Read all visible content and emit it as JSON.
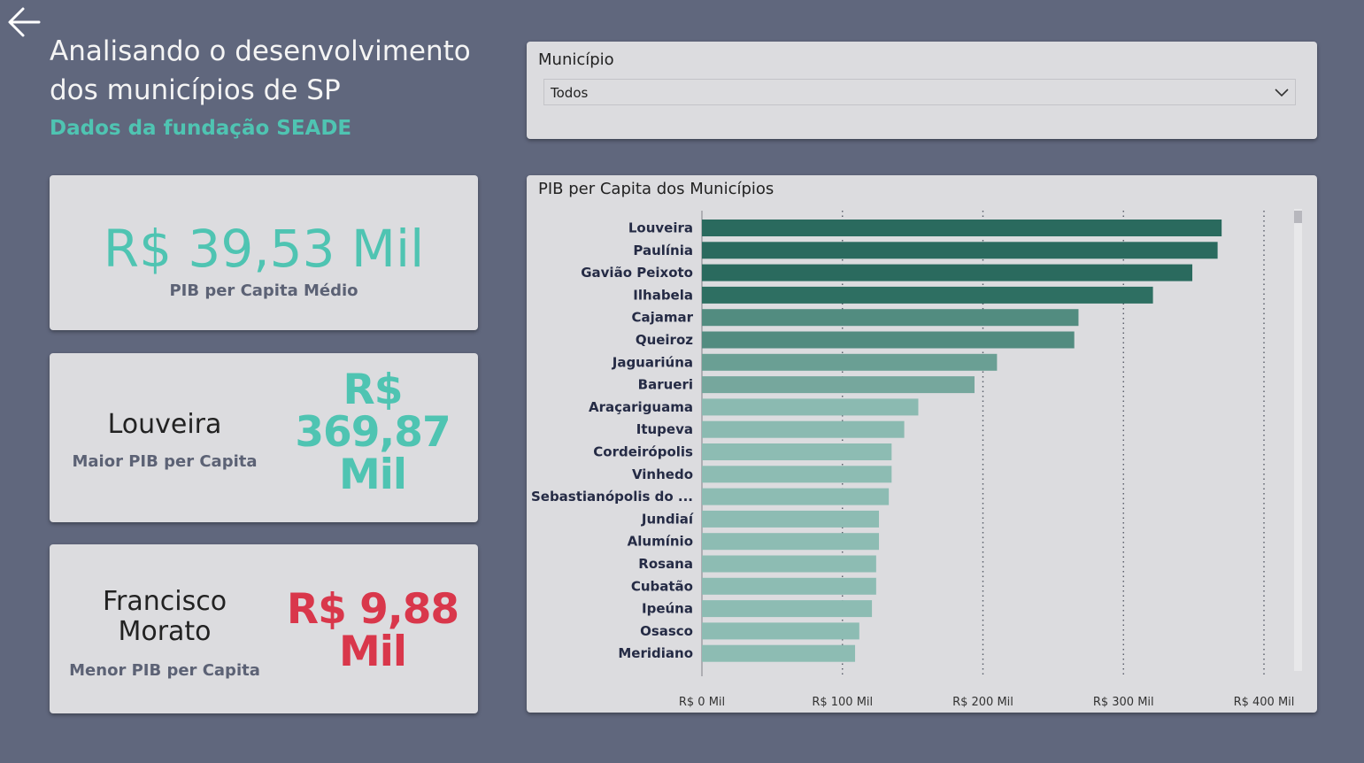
{
  "header": {
    "title": "Analisando o desenvolvimento dos municípios de SP",
    "subtitle": "Dados da fundação SEADE"
  },
  "icons": {
    "back": "arrow-left-icon",
    "dropdown": "chevron-down-icon"
  },
  "kpi_avg": {
    "value": "R$ 39,53 Mil",
    "label": "PIB per Capita Médio"
  },
  "kpi_max": {
    "name": "Louveira",
    "label": "Maior PIB per Capita",
    "value": "R$ 369,87 Mil"
  },
  "kpi_min": {
    "name": "Francisco Morato",
    "label": "Menor PIB per Capita",
    "value": "R$ 9,88 Mil"
  },
  "filter": {
    "title": "Município",
    "selected": "Todos"
  },
  "colors": {
    "accent": "#4fc4b2",
    "negative": "#d9374b",
    "background": "#60677d",
    "card": "#dcdcdf"
  },
  "chart_data": {
    "type": "bar",
    "orientation": "horizontal",
    "title": "PIB per Capita dos Municípios",
    "categories": [
      "Louveira",
      "Paulínia",
      "Gavião Peixoto",
      "Ilhabela",
      "Cajamar",
      "Queiroz",
      "Jaguariúna",
      "Barueri",
      "Araçariguama",
      "Itupeva",
      "Cordeirópolis",
      "Vinhedo",
      "Sebastianópolis do ...",
      "Jundiaí",
      "Alumínio",
      "Rosana",
      "Cubatão",
      "Ipeúna",
      "Osasco",
      "Meridiano"
    ],
    "values": [
      369.87,
      367,
      349,
      321,
      268,
      265,
      210,
      194,
      154,
      144,
      135,
      135,
      133,
      126,
      126,
      124,
      124,
      121,
      112,
      109
    ],
    "xticks": [
      0,
      100,
      200,
      300,
      400
    ],
    "xtick_labels": [
      "R$ 0 Mil",
      "R$ 100 Mil",
      "R$ 200 Mil",
      "R$ 300 Mil",
      "R$ 400 Mil"
    ],
    "xlim": [
      0,
      400
    ],
    "unit": "R$ Mil",
    "grid": "vertical dotted",
    "colors": [
      "#2a6a5e",
      "#2a6a5e",
      "#2a6a5e",
      "#2e6f62",
      "#528c80",
      "#528c80",
      "#6a9f94",
      "#76a79d",
      "#8bbab1",
      "#8bbab1",
      "#8dbcb3",
      "#8dbcb3",
      "#8dbcb3",
      "#8dbcb3",
      "#8dbcb3",
      "#8dbcb3",
      "#8dbcb3",
      "#8dbcb3",
      "#8dbcb3",
      "#8dbcb3"
    ]
  }
}
